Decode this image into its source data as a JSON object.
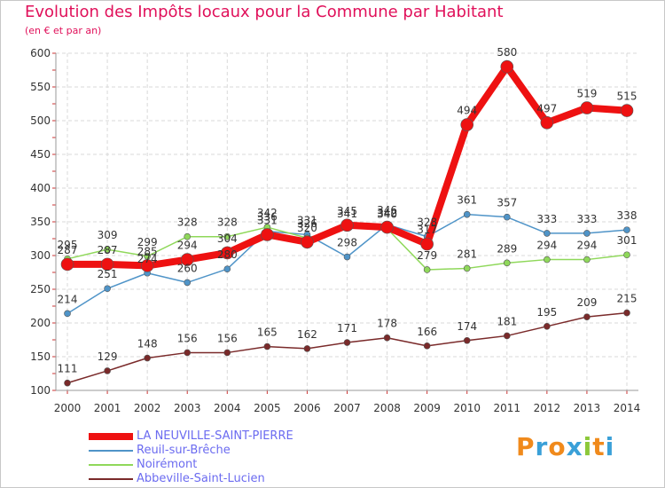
{
  "chart_data": {
    "type": "line",
    "title": "Evolution des Impôts locaux pour la Commune par Habitant",
    "subtitle": "(en € et par an)",
    "x": [
      2000,
      2001,
      2002,
      2003,
      2004,
      2005,
      2006,
      2007,
      2008,
      2009,
      2010,
      2011,
      2012,
      2013,
      2014
    ],
    "ylim": [
      100,
      600
    ],
    "yticks": [
      100,
      150,
      200,
      250,
      300,
      350,
      400,
      450,
      500,
      550,
      600
    ],
    "grid": true,
    "legend_position": "bottom-left",
    "series": [
      {
        "name": "LA NEUVILLE-SAINT-PIERRE",
        "color": "#ee1111",
        "values": [
          287,
          287,
          285,
          294,
          304,
          331,
          320,
          345,
          342,
          317,
          494,
          580,
          497,
          519,
          515
        ]
      },
      {
        "name": "Reuil-sur-Brêche",
        "color": "#4f94c8",
        "values": [
          214,
          251,
          274,
          260,
          280,
          336,
          331,
          298,
          346,
          328,
          361,
          357,
          333,
          333,
          338
        ]
      },
      {
        "name": "Noirémont",
        "color": "#8fd85a",
        "values": [
          295,
          309,
          299,
          328,
          328,
          342,
          326,
          341,
          340,
          279,
          281,
          289,
          294,
          294,
          301
        ]
      },
      {
        "name": "Abbeville-Saint-Lucien",
        "color": "#7a2a2a",
        "values": [
          111,
          129,
          148,
          156,
          156,
          165,
          162,
          171,
          178,
          166,
          174,
          181,
          195,
          209,
          215
        ]
      }
    ]
  },
  "logo": {
    "text": "Proxiti"
  }
}
